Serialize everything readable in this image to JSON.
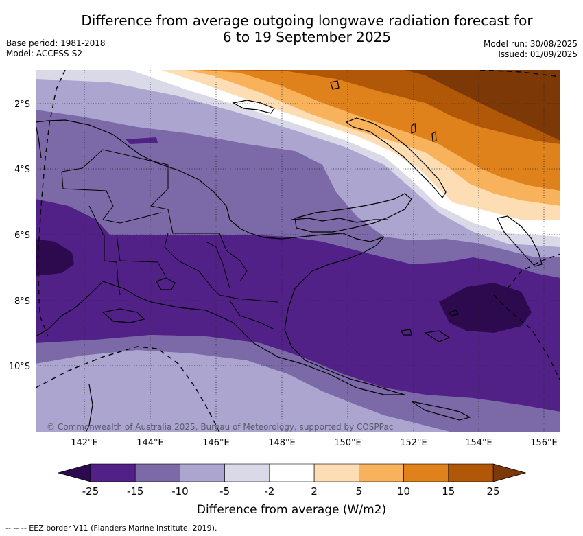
{
  "title_line1": "Difference from average outgoing longwave radiation forecast for",
  "title_line2": "6 to 19 September 2025",
  "base_period": "Base period: 1981-2018",
  "model": "Model: ACCESS-S2",
  "model_run": "Model run: 30/08/2025",
  "issued": "Issued: 01/09/2025",
  "copyright": "© Commonwealth of Australia 2025, Bureau of Meteorology, supported by COSPPac",
  "lat_labels": [
    "2°S",
    "4°S",
    "6°S",
    "8°S",
    "10°S"
  ],
  "lon_labels": [
    "142°E",
    "144°E",
    "146°E",
    "148°E",
    "150°E",
    "152°E",
    "154°E",
    "156°E"
  ],
  "colorbar": {
    "title": "Difference from average (W/m2)",
    "ticks": [
      "-25",
      "-15",
      "-10",
      "-5",
      "-2",
      "2",
      "5",
      "10",
      "15",
      "25"
    ],
    "colors": [
      "#2d0a4e",
      "#522188",
      "#7b6aa7",
      "#aba5cf",
      "#d9d9e8",
      "#ffffff",
      "#fdddb3",
      "#f9b25c",
      "#e0821b",
      "#b15708",
      "#7d3807"
    ]
  },
  "legend_line": "-- EEZ border V11 (Flanders Marine Institute, 2019).",
  "legend_dash": "--  --",
  "colors": {
    "ocean_bg": "#aba5cf",
    "coast": "#000000"
  }
}
